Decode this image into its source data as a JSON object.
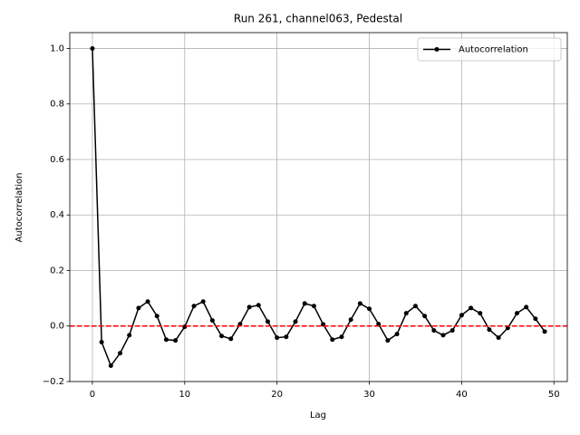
{
  "chart_data": {
    "type": "line",
    "title": "Run 261, channel063, Pedestal",
    "xlabel": "Lag",
    "ylabel": "Autocorrelation",
    "x": [
      0,
      1,
      2,
      3,
      4,
      5,
      6,
      7,
      8,
      9,
      10,
      11,
      12,
      13,
      14,
      15,
      16,
      17,
      18,
      19,
      20,
      21,
      22,
      23,
      24,
      25,
      26,
      27,
      28,
      29,
      30,
      31,
      32,
      33,
      34,
      35,
      36,
      37,
      38,
      39,
      40,
      41,
      42,
      43,
      44,
      45,
      46,
      47,
      48,
      49
    ],
    "series": [
      {
        "name": "Autocorrelation",
        "color": "#000000",
        "values": [
          1.0,
          -0.058,
          -0.143,
          -0.098,
          -0.033,
          0.065,
          0.088,
          0.036,
          -0.049,
          -0.052,
          -0.003,
          0.072,
          0.088,
          0.02,
          -0.036,
          -0.046,
          0.007,
          0.068,
          0.075,
          0.016,
          -0.042,
          -0.039,
          0.016,
          0.081,
          0.072,
          0.006,
          -0.049,
          -0.039,
          0.023,
          0.081,
          0.062,
          0.007,
          -0.052,
          -0.029,
          0.046,
          0.072,
          0.036,
          -0.016,
          -0.033,
          -0.016,
          0.039,
          0.065,
          0.046,
          -0.013,
          -0.042,
          -0.007,
          0.046,
          0.068,
          0.026,
          -0.02
        ]
      }
    ],
    "hline": {
      "value": 0,
      "color": "#ff0000"
    },
    "xlim": [
      -2.45,
      51.45
    ],
    "ylim": [
      -0.2,
      1.057
    ],
    "xticks": [
      0,
      10,
      20,
      30,
      40,
      50
    ],
    "yticks": [
      {
        "value": -0.2,
        "label": "−0.2"
      },
      {
        "value": 0,
        "label": "0.0"
      },
      0.2,
      0.4,
      0.6,
      0.8,
      {
        "value": 1,
        "label": "1.0"
      }
    ],
    "grid": true,
    "legend": "upper right"
  }
}
